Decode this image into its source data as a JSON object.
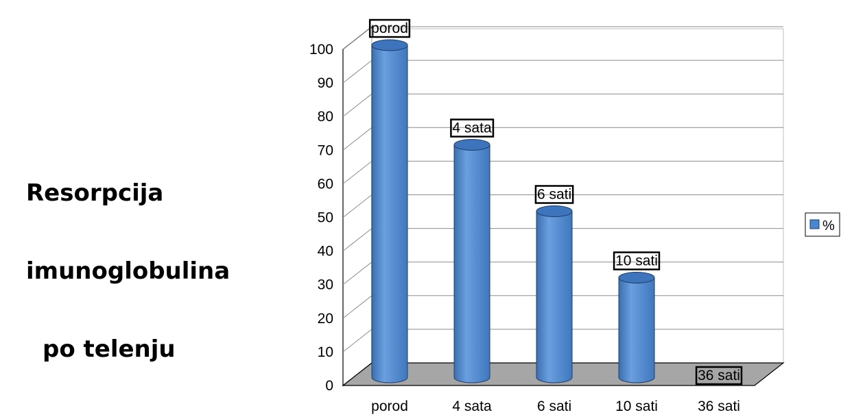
{
  "side_text": {
    "line1": "Resorpcija",
    "line2": "imunoglobulina",
    "line3": "po telenju"
  },
  "chart_data": {
    "type": "bar",
    "style": "3d-cylinder",
    "categories": [
      "porod",
      "4 sata",
      "6 sati",
      "10 sati",
      "36 sati"
    ],
    "series": [
      {
        "name": "%",
        "values": [
          100,
          70,
          50,
          30,
          0
        ],
        "color": "#4a86cf"
      }
    ],
    "data_labels": [
      "porod",
      "4 sata",
      "6 sati",
      "10 sati",
      "36 sati"
    ],
    "y_ticks": [
      0,
      10,
      20,
      30,
      40,
      50,
      60,
      70,
      80,
      90,
      100
    ],
    "ylim": [
      0,
      100
    ],
    "grid": true,
    "legend": "right",
    "floor_color": "#a6a6a6"
  }
}
